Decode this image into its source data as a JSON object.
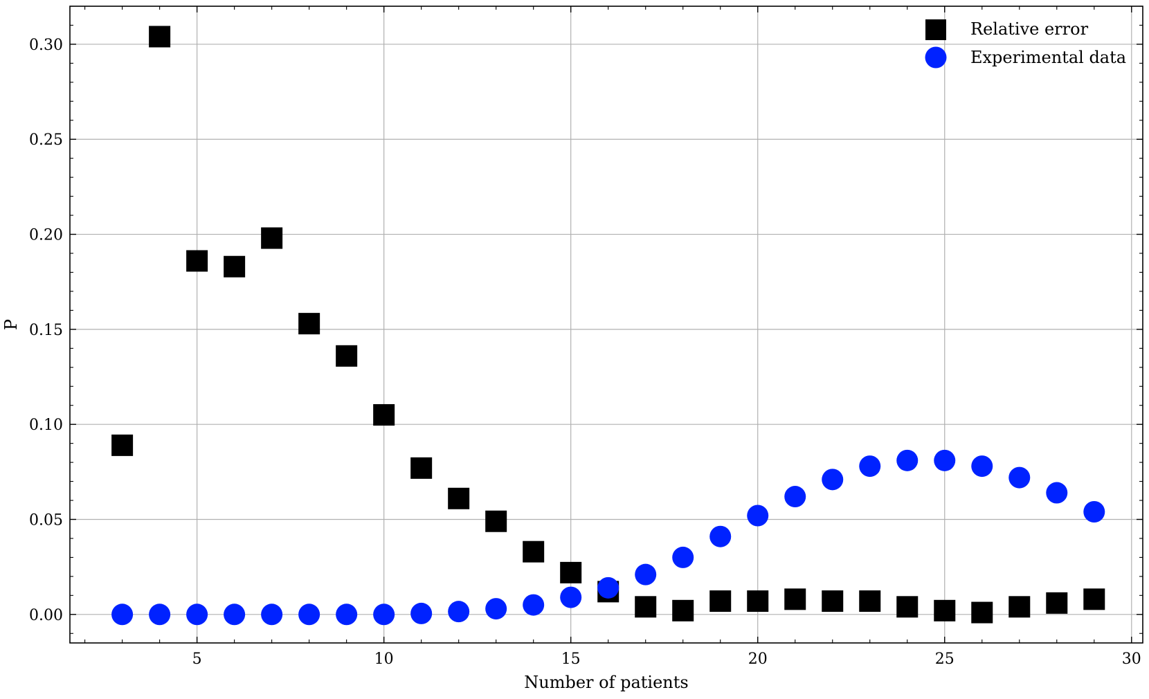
{
  "chart_data": {
    "type": "scatter",
    "title": "",
    "xlabel": "Number of patients",
    "ylabel": "P",
    "xlim": [
      1.6,
      30.3
    ],
    "ylim": [
      -0.015,
      0.32
    ],
    "xticks": [
      5,
      10,
      15,
      20,
      25,
      30
    ],
    "xtick_labels": [
      "5",
      "10",
      "15",
      "20",
      "25",
      "30"
    ],
    "yticks": [
      0.0,
      0.05,
      0.1,
      0.15,
      0.2,
      0.25,
      0.3
    ],
    "ytick_labels": [
      "0.00",
      "0.05",
      "0.10",
      "0.15",
      "0.20",
      "0.25",
      "0.30"
    ],
    "grid": true,
    "legend_position": "top-right",
    "series": [
      {
        "name": "Relative error",
        "marker": "square",
        "color": "#000000",
        "x": [
          3,
          4,
          5,
          6,
          7,
          8,
          9,
          10,
          11,
          12,
          13,
          14,
          15,
          16,
          17,
          18,
          19,
          20,
          21,
          22,
          23,
          24,
          25,
          26,
          27,
          28,
          29
        ],
        "y": [
          0.089,
          0.304,
          0.186,
          0.183,
          0.198,
          0.153,
          0.136,
          0.105,
          0.077,
          0.061,
          0.049,
          0.033,
          0.022,
          0.012,
          0.004,
          0.002,
          0.007,
          0.007,
          0.008,
          0.007,
          0.007,
          0.004,
          0.002,
          0.001,
          0.004,
          0.006,
          0.008
        ]
      },
      {
        "name": "Experimental data",
        "marker": "circle",
        "color": "#0022ff",
        "x": [
          3,
          4,
          5,
          6,
          7,
          8,
          9,
          10,
          11,
          12,
          13,
          14,
          15,
          16,
          17,
          18,
          19,
          20,
          21,
          22,
          23,
          24,
          25,
          26,
          27,
          28,
          29
        ],
        "y": [
          0.0,
          0.0,
          0.0,
          0.0,
          0.0,
          0.0,
          0.0,
          0.0,
          0.0005,
          0.0015,
          0.003,
          0.005,
          0.009,
          0.014,
          0.021,
          0.03,
          0.041,
          0.052,
          0.062,
          0.071,
          0.078,
          0.081,
          0.081,
          0.078,
          0.072,
          0.064,
          0.054
        ]
      }
    ]
  }
}
